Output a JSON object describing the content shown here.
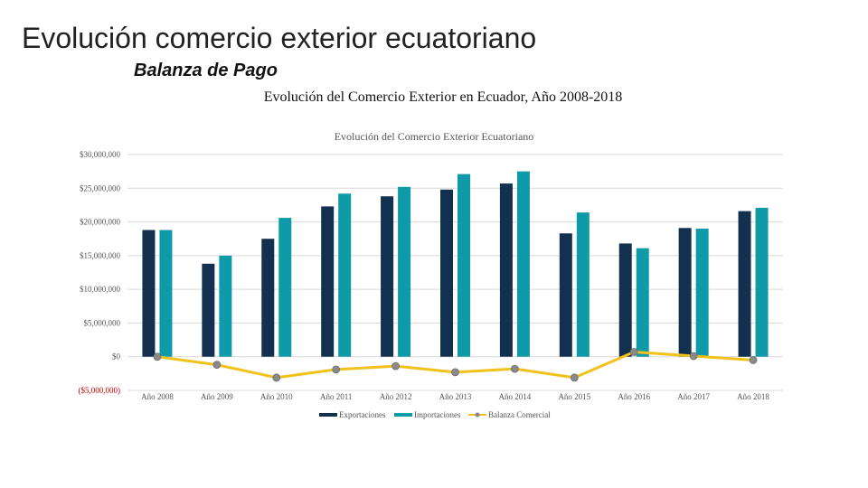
{
  "slide": {
    "title": "Evolución comercio exterior ecuatoriano",
    "subtitle": "Balanza de Pago",
    "heading": "Evolución del Comercio Exterior en Ecuador, Año 2008-2018"
  },
  "chart_data": {
    "type": "bar",
    "title": "Evolución del Comercio Exterior Ecuatoriano",
    "categories": [
      "Año 2008",
      "Año 2009",
      "Año 2010",
      "Año 2011",
      "Año 2012",
      "Año 2013",
      "Año 2014",
      "Año 2015",
      "Año 2016",
      "Año 2017",
      "Año 2018"
    ],
    "y_ticks": [
      {
        "value": -5000000,
        "label": "($5,000,000)"
      },
      {
        "value": 0,
        "label": "$0"
      },
      {
        "value": 5000000,
        "label": "$5,000,000"
      },
      {
        "value": 10000000,
        "label": "$10,000,000"
      },
      {
        "value": 15000000,
        "label": "$15,000,000"
      },
      {
        "value": 20000000,
        "label": "$20,000,000"
      },
      {
        "value": 25000000,
        "label": "$25,000,000"
      },
      {
        "value": 30000000,
        "label": "$30,000,000"
      }
    ],
    "ylim": [
      -5000000,
      30000000
    ],
    "grid": true,
    "legend_position": "bottom",
    "series": [
      {
        "name": "Exportaciones",
        "kind": "bar",
        "color": "#14304f",
        "values": [
          18800000,
          13800000,
          17500000,
          22300000,
          23800000,
          24800000,
          25700000,
          18300000,
          16800000,
          19100000,
          21600000
        ]
      },
      {
        "name": "Importaciones",
        "kind": "bar",
        "color": "#0e9aa7",
        "values": [
          18800000,
          15000000,
          20600000,
          24200000,
          25200000,
          27100000,
          27500000,
          21400000,
          16100000,
          19000000,
          22100000
        ]
      },
      {
        "name": "Balanza Comercial",
        "kind": "line",
        "color": "#f1c21b",
        "marker_color": "#8a8a8a",
        "values": [
          0,
          -1200000,
          -3100000,
          -1900000,
          -1400000,
          -2300000,
          -1800000,
          -3100000,
          700000,
          100000,
          -500000
        ]
      }
    ]
  }
}
